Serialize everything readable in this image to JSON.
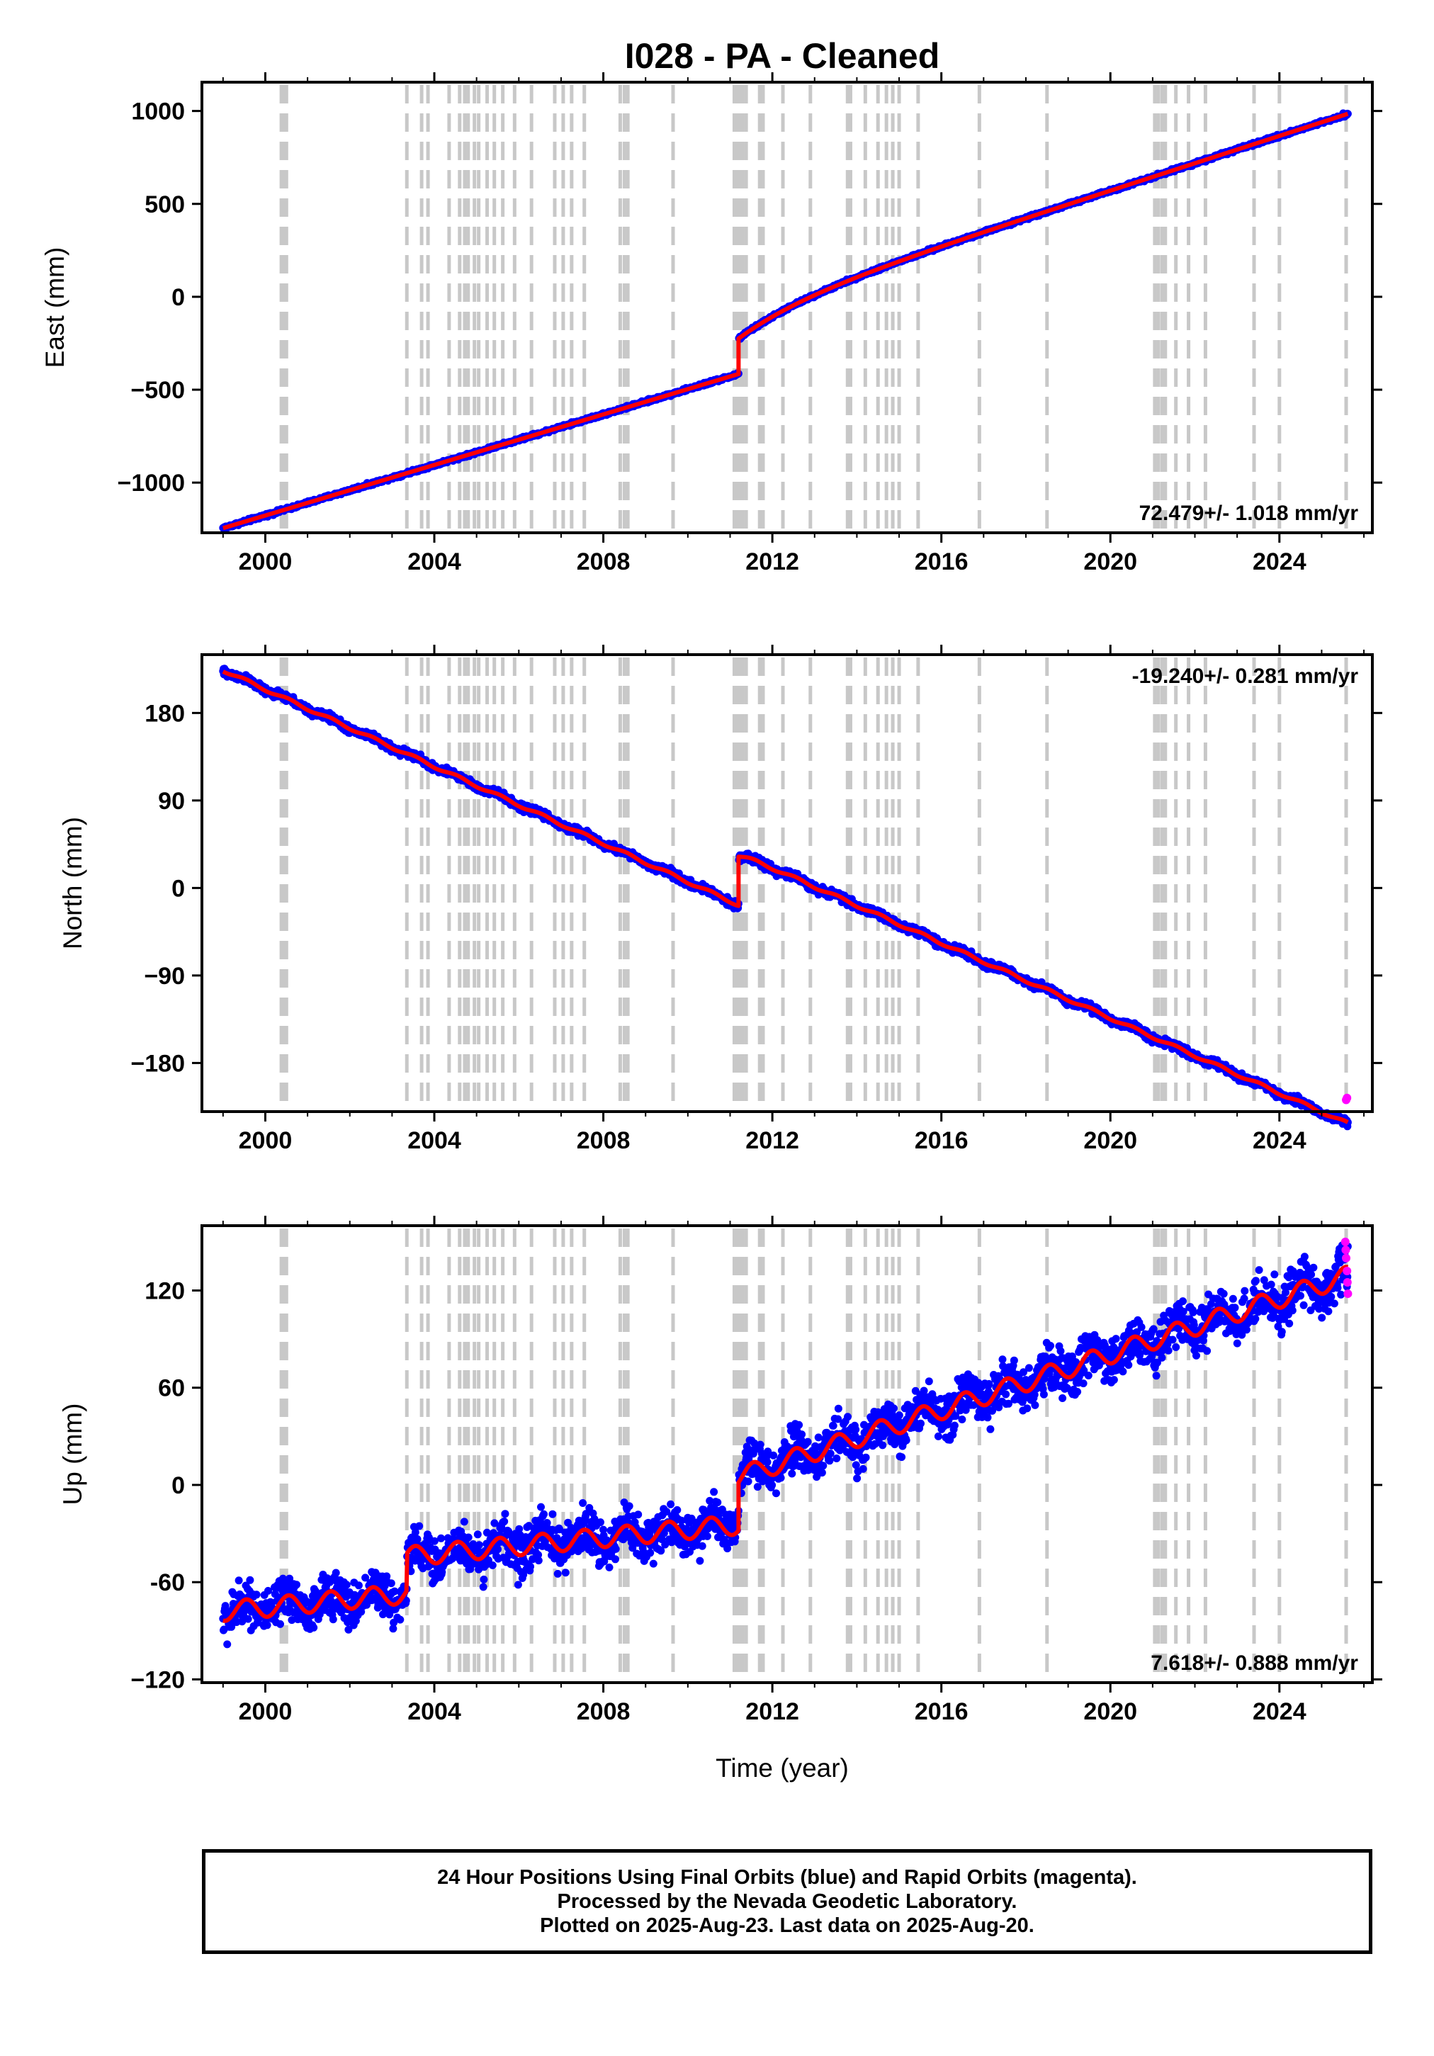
{
  "title": "I028  - PA - Cleaned",
  "xlabel": "Time (year)",
  "caption": {
    "line1": "24 Hour Positions Using Final Orbits (blue) and Rapid Orbits (magenta).",
    "line2": "Processed by the Nevada Geodetic Laboratory.",
    "line3": "Plotted on 2025-Aug-23. Last data on 2025-Aug-20."
  },
  "colors": {
    "final_orbits": "#0000ff",
    "rapid_orbits": "#ff00ff",
    "model_fit": "#ff0000",
    "event_lines": "#c8c8c8"
  },
  "event_lines": [
    2000.38,
    2000.42,
    2000.46,
    2000.5,
    2003.35,
    2003.7,
    2003.85,
    2004.35,
    2004.6,
    2004.72,
    2004.8,
    2004.95,
    2005.05,
    2005.25,
    2005.42,
    2005.62,
    2005.9,
    2006.3,
    2006.85,
    2007.05,
    2007.25,
    2007.55,
    2008.4,
    2008.5,
    2008.58,
    2009.65,
    2011.1,
    2011.17,
    2011.22,
    2011.3,
    2011.38,
    2011.7,
    2011.78,
    2012.25,
    2012.9,
    2013.78,
    2013.85,
    2014.2,
    2014.5,
    2014.7,
    2014.85,
    2015.0,
    2015.45,
    2016.9,
    2018.5,
    2021.05,
    2021.13,
    2021.22,
    2021.3,
    2021.55,
    2021.85,
    2022.25,
    2023.4,
    2024.0,
    2025.58
  ],
  "chart_data": [
    {
      "type": "scatter",
      "name": "east",
      "ylabel": "East (mm)",
      "xlim": [
        1998.5,
        2026.2
      ],
      "ylim": [
        -1270,
        1155
      ],
      "xticks": [
        2000,
        2004,
        2008,
        2012,
        2016,
        2020,
        2024
      ],
      "xtick_labels": [
        "2000",
        "2004",
        "2008",
        "2012",
        "2016",
        "2020",
        "2024"
      ],
      "yticks": [
        -1000,
        -500,
        0,
        500,
        1000
      ],
      "ytick_labels": [
        "−1000",
        "−500",
        "0",
        "500",
        "1000"
      ],
      "rate": "72.479+/- 1.018 mm/yr",
      "rate_position": "bottom-right",
      "start": 1999.0,
      "end": 2025.63,
      "step": 2011.2,
      "y0": -1245,
      "slope_before": 68.0,
      "y_after_step": -225,
      "postseismic_amp": 150,
      "postseismic_tau": 1.6,
      "slope_after": 73.5,
      "seasonal_amp": 0,
      "noise": 4,
      "rapid_points": []
    },
    {
      "type": "scatter",
      "name": "north",
      "ylabel": "North (mm)",
      "xlim": [
        1998.5,
        2026.2
      ],
      "ylim": [
        -230,
        240
      ],
      "xticks": [
        2000,
        2004,
        2008,
        2012,
        2016,
        2020,
        2024
      ],
      "xtick_labels": [
        "2000",
        "2004",
        "2008",
        "2012",
        "2016",
        "2020",
        "2024"
      ],
      "yticks": [
        -180,
        -90,
        0,
        90,
        180
      ],
      "ytick_labels": [
        "−180",
        "−90",
        "0",
        "90",
        "180"
      ],
      "rate": "-19.240+/- 0.281 mm/yr",
      "rate_position": "top-right",
      "start": 1999.0,
      "end": 2025.63,
      "step": 2011.2,
      "y0": 224,
      "slope_before": -19.8,
      "y_after_step": 33,
      "postseismic_amp": 3,
      "postseismic_tau": 0.3,
      "slope_after": -19.3,
      "seasonal_amp": 1.5,
      "noise": 2,
      "rapid_points": [
        [
          2025.58,
          -218
        ],
        [
          2025.6,
          -216
        ]
      ]
    },
    {
      "type": "scatter",
      "name": "up",
      "ylabel": "Up (mm)",
      "xlim": [
        1998.5,
        2026.2
      ],
      "ylim": [
        -122,
        160
      ],
      "xticks": [
        2000,
        2004,
        2008,
        2012,
        2016,
        2020,
        2024
      ],
      "xtick_labels": [
        "2000",
        "2004",
        "2008",
        "2012",
        "2016",
        "2020",
        "2024"
      ],
      "yticks": [
        -120,
        -60,
        0,
        60,
        120
      ],
      "ytick_labels": [
        "−120",
        "-60",
        "0",
        "60",
        "120"
      ],
      "rate": "7.618+/- 0.888 mm/yr",
      "rate_position": "bottom-right",
      "start": 1999.0,
      "end": 2025.63,
      "step": 2011.2,
      "y0": -78,
      "slope_before": 2.5,
      "y_after_step": -18,
      "postseismic_amp": 0,
      "postseismic_tau": 1,
      "slope_after": 8.6,
      "seasonal_amp": 6,
      "noise": 7,
      "extra_steps": [
        [
          2003.35,
          23
        ]
      ],
      "rapid_points": [
        [
          2025.56,
          150
        ],
        [
          2025.57,
          145
        ],
        [
          2025.58,
          140
        ],
        [
          2025.6,
          132
        ],
        [
          2025.61,
          125
        ],
        [
          2025.62,
          118
        ]
      ]
    }
  ]
}
